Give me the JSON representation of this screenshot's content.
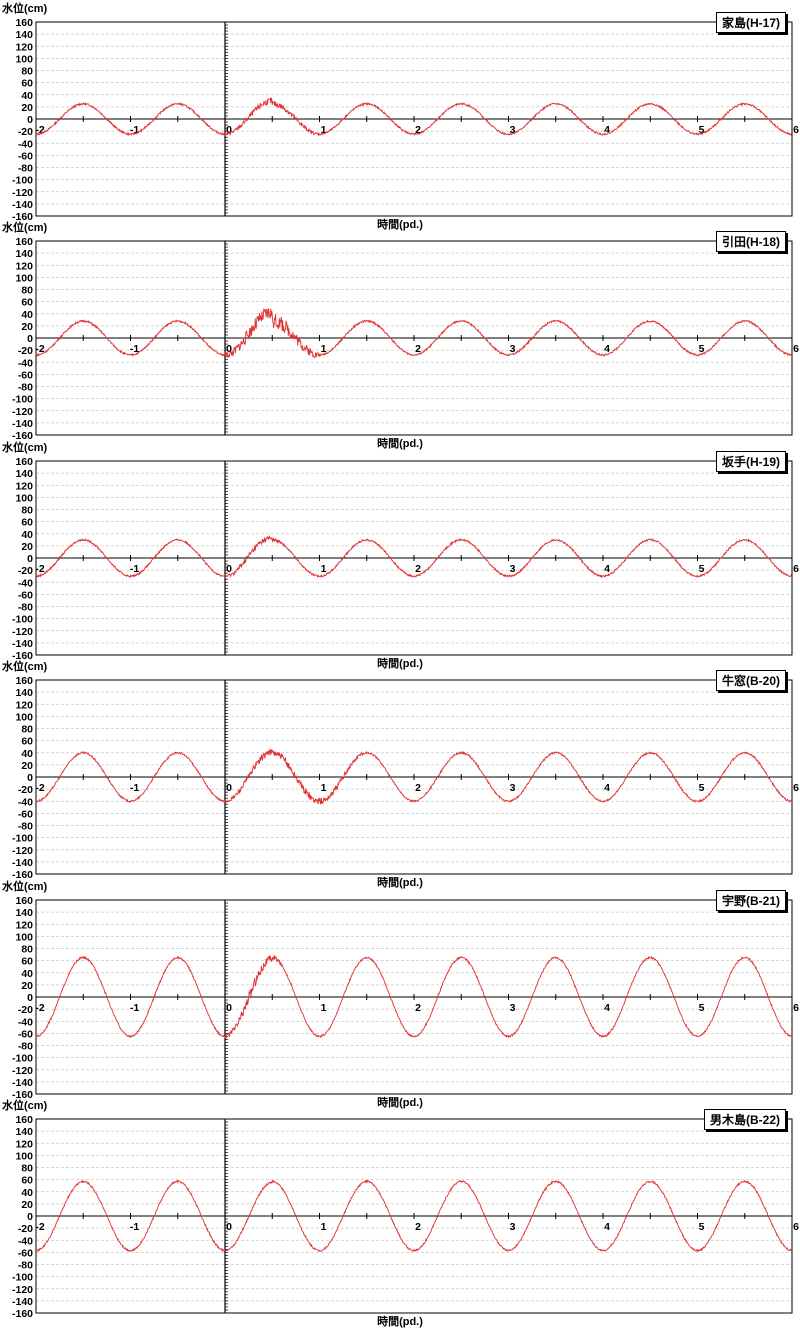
{
  "y_axis_label": "水位(cm)",
  "x_axis_label": "時間(pd.)",
  "y_ticks": [
    "160",
    "140",
    "120",
    "100",
    "80",
    "60",
    "40",
    "20",
    "0",
    "-20",
    "-40",
    "-60",
    "-80",
    "-100",
    "-120",
    "-140",
    "-160"
  ],
  "x_ticks": [
    "-2",
    "-1",
    "0",
    "1",
    "2",
    "3",
    "4",
    "5",
    "6"
  ],
  "colors": {
    "series": "#e03030",
    "grid": "#c8c8c8",
    "axis": "#000000"
  },
  "chart_data": [
    {
      "type": "line",
      "title": "家島(H-17)",
      "ylabel": "水位(cm)",
      "xlabel": "時間(pd.)",
      "xlim": [
        -2,
        6
      ],
      "ylim": [
        -160,
        160
      ],
      "grid": true,
      "amplitude_cm": 25,
      "period_pd": 1,
      "peak_phase_pd": 0.5,
      "disturbance": {
        "start_pd": 0,
        "end_pd": 1,
        "peak_cm": 30,
        "noise_cm": 5
      }
    },
    {
      "type": "line",
      "title": "引田(H-18)",
      "ylabel": "水位(cm)",
      "xlabel": "時間(pd.)",
      "xlim": [
        -2,
        6
      ],
      "ylim": [
        -160,
        160
      ],
      "grid": true,
      "amplitude_cm": 28,
      "period_pd": 1,
      "peak_phase_pd": 0.5,
      "disturbance": {
        "start_pd": 0,
        "end_pd": 1,
        "peak_cm": 42,
        "noise_cm": 12
      }
    },
    {
      "type": "line",
      "title": "坂手(H-19)",
      "ylabel": "水位(cm)",
      "xlabel": "時間(pd.)",
      "xlim": [
        -2,
        6
      ],
      "ylim": [
        -160,
        160
      ],
      "grid": true,
      "amplitude_cm": 30,
      "period_pd": 1,
      "peak_phase_pd": 0.5,
      "disturbance": {
        "start_pd": 0,
        "end_pd": 0.6,
        "peak_cm": 35,
        "noise_cm": 5
      }
    },
    {
      "type": "line",
      "title": "牛窓(B-20)",
      "ylabel": "水位(cm)",
      "xlabel": "時間(pd.)",
      "xlim": [
        -2,
        6
      ],
      "ylim": [
        -160,
        160
      ],
      "grid": true,
      "amplitude_cm": 40,
      "period_pd": 1,
      "peak_phase_pd": 0.5,
      "disturbance": {
        "start_pd": 0,
        "end_pd": 1.5,
        "peak_cm": 42,
        "noise_cm": 6
      }
    },
    {
      "type": "line",
      "title": "宇野(B-21)",
      "ylabel": "水位(cm)",
      "xlabel": "時間(pd.)",
      "xlim": [
        -2,
        6
      ],
      "ylim": [
        -160,
        160
      ],
      "grid": true,
      "amplitude_cm": 65,
      "period_pd": 1,
      "peak_phase_pd": 0.5,
      "disturbance": {
        "start_pd": 0,
        "end_pd": 0.6,
        "peak_cm": 62,
        "noise_cm": 8
      }
    },
    {
      "type": "line",
      "title": "男木島(B-22)",
      "ylabel": "水位(cm)",
      "xlabel": "時間(pd.)",
      "xlim": [
        -2,
        6
      ],
      "ylim": [
        -160,
        160
      ],
      "grid": true,
      "amplitude_cm": 57,
      "period_pd": 1,
      "peak_phase_pd": 0.5,
      "disturbance": {
        "start_pd": 0,
        "end_pd": 0.6,
        "peak_cm": 55,
        "noise_cm": 2
      }
    }
  ]
}
